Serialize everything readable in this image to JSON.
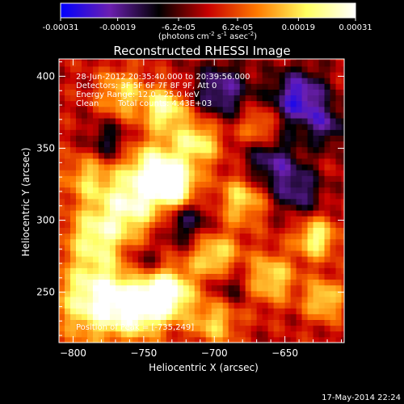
{
  "chart_data": {
    "type": "heatmap",
    "title": "Reconstructed RHESSI Image",
    "xlabel": "Heliocentric X (arcsec)",
    "ylabel": "Heliocentric Y (arcsec)",
    "xlim": [
      -810,
      -608
    ],
    "ylim": [
      215,
      412
    ],
    "xticks": [
      -800,
      -750,
      -700,
      -650
    ],
    "yticks": [
      250,
      300,
      350,
      400
    ],
    "colorbar": {
      "tick_labels": [
        "-0.00031",
        "-0.00019",
        "-6.2e-05",
        "6.2e-05",
        "0.00019",
        "0.00031"
      ],
      "tick_values": [
        -0.00031,
        -0.00019,
        -6.2e-05,
        6.2e-05,
        0.00019,
        0.00031
      ],
      "range": [
        -0.00031,
        0.00031
      ],
      "units_prefix": "(photons cm",
      "units_exp1": "-2",
      "units_mid": " s",
      "units_exp2": "-1",
      "units_suffix": " asec",
      "units_exp3": "-2",
      "units_close": ")",
      "colormap": [
        "#0000ff",
        "#6b1fb0",
        "#000000",
        "#c80000",
        "#ff7a00",
        "#ffff60",
        "#ffffff"
      ]
    },
    "annotations": [
      "28-Jun-2012 20:35:40.000 to 20:39:56.000",
      "Detectors: 3F 5F 6F 7F 8F 9F, Att 0",
      "Energy Range: 12.0 - 25.0 keV",
      "Clean",
      "Total counts: 4.43E+03",
      "Position of Peak = [-735,249]"
    ],
    "peak": {
      "x": -735,
      "y": 249
    },
    "hotspots": [
      {
        "x": -783,
        "y": 246,
        "s": 20,
        "v": 0.0003
      },
      {
        "x": -752,
        "y": 240,
        "s": 14,
        "v": 0.00026
      },
      {
        "x": -733,
        "y": 250,
        "s": 12,
        "v": 0.00031
      },
      {
        "x": -785,
        "y": 290,
        "s": 14,
        "v": 0.0002
      },
      {
        "x": -760,
        "y": 310,
        "s": 16,
        "v": 0.00024
      },
      {
        "x": -742,
        "y": 335,
        "s": 15,
        "v": 0.00027
      },
      {
        "x": -727,
        "y": 322,
        "s": 10,
        "v": 0.00028
      },
      {
        "x": -712,
        "y": 355,
        "s": 12,
        "v": 0.00022
      },
      {
        "x": -735,
        "y": 378,
        "s": 10,
        "v": 0.00026
      },
      {
        "x": -790,
        "y": 330,
        "s": 12,
        "v": 0.00016
      },
      {
        "x": -765,
        "y": 388,
        "s": 12,
        "v": 0.00018
      },
      {
        "x": -700,
        "y": 275,
        "s": 12,
        "v": 0.00022
      },
      {
        "x": -680,
        "y": 315,
        "s": 12,
        "v": 0.0002
      },
      {
        "x": -668,
        "y": 365,
        "s": 10,
        "v": 0.00016
      },
      {
        "x": -660,
        "y": 260,
        "s": 12,
        "v": 0.0002
      },
      {
        "x": -628,
        "y": 288,
        "s": 10,
        "v": 0.00024
      },
      {
        "x": -622,
        "y": 245,
        "s": 10,
        "v": 0.0002
      },
      {
        "x": -700,
        "y": 230,
        "s": 12,
        "v": 0.00018
      }
    ],
    "coldspots": [
      {
        "x": -695,
        "y": 390,
        "s": 14,
        "v": -0.0002
      },
      {
        "x": -640,
        "y": 385,
        "s": 14,
        "v": -0.00026
      },
      {
        "x": -660,
        "y": 340,
        "s": 14,
        "v": -0.00018
      },
      {
        "x": -720,
        "y": 300,
        "s": 12,
        "v": -0.00016
      },
      {
        "x": -775,
        "y": 355,
        "s": 10,
        "v": -0.00014
      },
      {
        "x": -640,
        "y": 320,
        "s": 12,
        "v": -0.00016
      },
      {
        "x": -690,
        "y": 255,
        "s": 10,
        "v": -0.00012
      },
      {
        "x": -750,
        "y": 270,
        "s": 10,
        "v": -0.00012
      },
      {
        "x": -620,
        "y": 365,
        "s": 10,
        "v": -0.00015
      }
    ]
  },
  "footer": {
    "timestamp": "17-May-2014 22:24"
  }
}
